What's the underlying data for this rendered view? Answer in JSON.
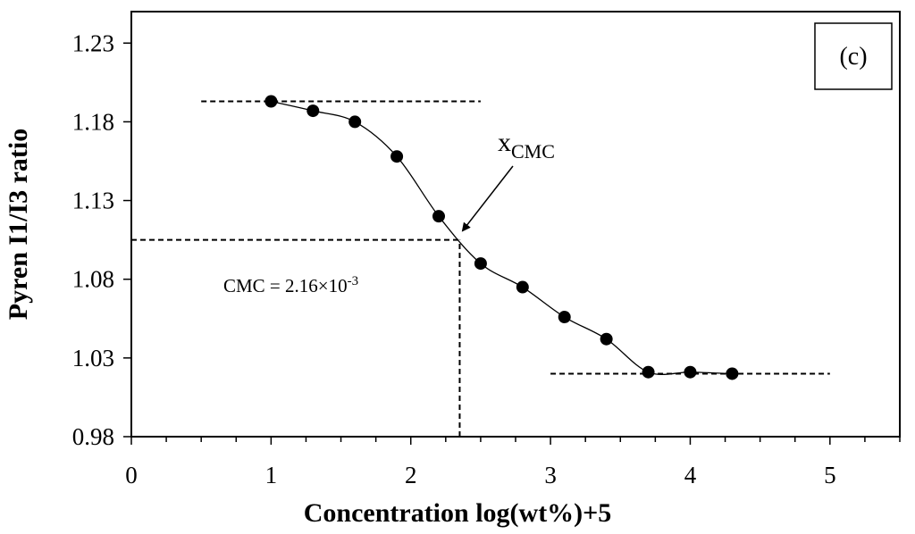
{
  "chart_data": {
    "type": "scatter",
    "panel_label": "(c)",
    "xlabel": "Concentration log(wt%)+5",
    "ylabel": "Pyren I1/I3 ratio",
    "xlim": [
      0,
      5.5
    ],
    "ylim": [
      0.98,
      1.25
    ],
    "x_ticks": [
      0,
      1,
      2,
      3,
      4,
      5
    ],
    "y_ticks": [
      0.98,
      1.03,
      1.08,
      1.13,
      1.18,
      1.23
    ],
    "x_tick_labels": [
      "0",
      "1",
      "2",
      "3",
      "4",
      "5"
    ],
    "y_tick_labels": [
      "0.98",
      "1.03",
      "1.08",
      "1.13",
      "1.18",
      "1.23"
    ],
    "grid": false,
    "series": [
      {
        "x": [
          1.0,
          1.3,
          1.6,
          1.9,
          2.2,
          2.5,
          2.8,
          3.1,
          3.4,
          3.7,
          4.0,
          4.3
        ],
        "y": [
          1.193,
          1.187,
          1.18,
          1.158,
          1.12,
          1.09,
          1.075,
          1.056,
          1.042,
          1.021,
          1.021,
          1.02
        ]
      }
    ],
    "reference_lines": [
      {
        "style": "dashed",
        "x": [
          0.5,
          2.5
        ],
        "y": [
          1.193,
          1.193
        ]
      },
      {
        "style": "dashed",
        "x": [
          3.0,
          5.0
        ],
        "y": [
          1.02,
          1.02
        ]
      },
      {
        "style": "dashed",
        "x": [
          0.0,
          2.35
        ],
        "y": [
          1.105,
          1.105
        ]
      },
      {
        "style": "dashed",
        "x": [
          2.35,
          2.35
        ],
        "y": [
          0.98,
          1.105
        ]
      }
    ],
    "cmc_point": {
      "x": 2.35,
      "y": 1.105
    },
    "annotations": {
      "xcmc_main": "x",
      "xcmc_sub": "CMC",
      "cmc_text": "CMC = 2.16×10",
      "cmc_exp": "-3"
    }
  }
}
